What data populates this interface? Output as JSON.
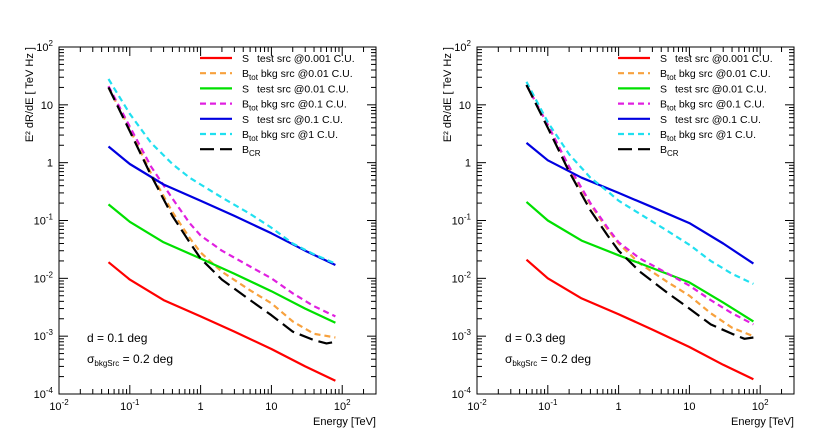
{
  "chart_data": [
    {
      "type": "line",
      "xscale": "log",
      "yscale": "log",
      "xlim": [
        0.01,
        300
      ],
      "ylim": [
        0.0001,
        100
      ],
      "xlabel": "Energy [TeV]",
      "ylabel": "E² dR/dE [ TeV Hz ]",
      "xticks": [
        {
          "value": 0.01,
          "base": "10",
          "exp": "-2"
        },
        {
          "value": 0.1,
          "base": "10",
          "exp": "-1"
        },
        {
          "value": 1,
          "base": "1",
          "exp": ""
        },
        {
          "value": 10,
          "base": "10",
          "exp": ""
        },
        {
          "value": 100,
          "base": "10",
          "exp": "2"
        }
      ],
      "yticks": [
        {
          "value": 0.0001,
          "base": "10",
          "exp": "-4"
        },
        {
          "value": 0.001,
          "base": "10",
          "exp": "-3"
        },
        {
          "value": 0.01,
          "base": "10",
          "exp": "-2"
        },
        {
          "value": 0.1,
          "base": "10",
          "exp": "-1"
        },
        {
          "value": 1,
          "base": "1",
          "exp": ""
        },
        {
          "value": 10,
          "base": "10",
          "exp": ""
        },
        {
          "value": 100,
          "base": "10",
          "exp": "2"
        }
      ],
      "annotations": [
        {
          "text": "d = 0.1 deg"
        },
        {
          "main": "σ",
          "sub": "bkgSrc",
          "rest": " = 0.2 deg"
        }
      ],
      "series": [
        {
          "name": "S test src @0.001 C.U.",
          "legend_main": "S",
          "legend_sub": "",
          "legend_rest": "test src @0.001 C.U.",
          "color": "#ff0000",
          "dash": "solid",
          "x": [
            0.05,
            0.1,
            0.3,
            1,
            3,
            10,
            30,
            80
          ],
          "y": [
            0.019,
            0.0095,
            0.0042,
            0.0022,
            0.0012,
            0.0006,
            0.0003,
            0.00017
          ]
        },
        {
          "name": "Btot bkg src @0.01 C.U.",
          "legend_main": "B",
          "legend_sub": "tot",
          "legend_rest": "bkg src @0.01 C.U.",
          "color": "#f7a13d",
          "dash": "dashed",
          "x": [
            0.05,
            0.1,
            0.2,
            0.4,
            0.7,
            1,
            2,
            5,
            10,
            20,
            40,
            80
          ],
          "y": [
            20,
            3.8,
            0.65,
            0.14,
            0.05,
            0.028,
            0.013,
            0.0062,
            0.0037,
            0.0018,
            0.0011,
            0.00095
          ]
        },
        {
          "name": "S test src @0.01 C.U.",
          "legend_main": "S",
          "legend_sub": "",
          "legend_rest": "test src @0.01 C.U.",
          "color": "#00e000",
          "dash": "solid",
          "x": [
            0.05,
            0.1,
            0.3,
            1,
            3,
            10,
            30,
            80
          ],
          "y": [
            0.19,
            0.095,
            0.042,
            0.022,
            0.012,
            0.006,
            0.003,
            0.0017
          ]
        },
        {
          "name": "Btot bkg src @0.1 C.U.",
          "legend_main": "B",
          "legend_sub": "tot",
          "legend_rest": "bkg src @0.1 C.U.",
          "color": "#e020e0",
          "dash": "dashed",
          "x": [
            0.05,
            0.1,
            0.2,
            0.4,
            0.7,
            1,
            2,
            5,
            10,
            20,
            40,
            80
          ],
          "y": [
            21,
            4.2,
            0.85,
            0.24,
            0.09,
            0.055,
            0.03,
            0.016,
            0.01,
            0.0055,
            0.0033,
            0.0022
          ]
        },
        {
          "name": "S test src @0.1 C.U.",
          "legend_main": "S",
          "legend_sub": "",
          "legend_rest": "test src @0.1 C.U.",
          "color": "#0000e0",
          "dash": "solid",
          "x": [
            0.05,
            0.1,
            0.3,
            1,
            3,
            10,
            30,
            80
          ],
          "y": [
            1.9,
            0.95,
            0.42,
            0.22,
            0.12,
            0.06,
            0.03,
            0.017
          ]
        },
        {
          "name": "Btot bkg src @1 C.U.",
          "legend_main": "B",
          "legend_sub": "tot",
          "legend_rest": "bkg src @1 C.U.",
          "color": "#20e0f0",
          "dash": "dashed",
          "x": [
            0.05,
            0.1,
            0.2,
            0.4,
            0.7,
            1,
            2,
            5,
            10,
            20,
            40,
            80
          ],
          "y": [
            28,
            7,
            2.2,
            0.95,
            0.55,
            0.42,
            0.25,
            0.13,
            0.075,
            0.04,
            0.026,
            0.018
          ]
        },
        {
          "name": "BCR",
          "legend_main": "B",
          "legend_sub": "CR",
          "legend_rest": "",
          "color": "#000000",
          "dash": "longdash",
          "x": [
            0.05,
            0.1,
            0.2,
            0.4,
            0.7,
            1,
            2,
            5,
            10,
            20,
            40,
            60,
            80
          ],
          "y": [
            20,
            3.5,
            0.6,
            0.12,
            0.042,
            0.022,
            0.0095,
            0.0042,
            0.0023,
            0.0012,
            0.00085,
            0.00075,
            0.0008
          ]
        }
      ]
    },
    {
      "type": "line",
      "xscale": "log",
      "yscale": "log",
      "xlim": [
        0.01,
        300
      ],
      "ylim": [
        0.0001,
        100
      ],
      "xlabel": "Energy [TeV]",
      "ylabel": "E² dR/dE [ TeV Hz ]",
      "xticks": [
        {
          "value": 0.01,
          "base": "10",
          "exp": "-2"
        },
        {
          "value": 0.1,
          "base": "10",
          "exp": "-1"
        },
        {
          "value": 1,
          "base": "1",
          "exp": ""
        },
        {
          "value": 10,
          "base": "10",
          "exp": ""
        },
        {
          "value": 100,
          "base": "10",
          "exp": "2"
        }
      ],
      "yticks": [
        {
          "value": 0.0001,
          "base": "10",
          "exp": "-4"
        },
        {
          "value": 0.001,
          "base": "10",
          "exp": "-3"
        },
        {
          "value": 0.01,
          "base": "10",
          "exp": "-2"
        },
        {
          "value": 0.1,
          "base": "10",
          "exp": "-1"
        },
        {
          "value": 1,
          "base": "1",
          "exp": ""
        },
        {
          "value": 10,
          "base": "10",
          "exp": ""
        },
        {
          "value": 100,
          "base": "10",
          "exp": "2"
        }
      ],
      "annotations": [
        {
          "text": "d = 0.3 deg"
        },
        {
          "main": "σ",
          "sub": "bkgSrc",
          "rest": " = 0.2 deg"
        }
      ],
      "series": [
        {
          "name": "S test src @0.001 C.U.",
          "legend_main": "S",
          "legend_sub": "",
          "legend_rest": "test src @0.001 C.U.",
          "color": "#ff0000",
          "dash": "solid",
          "x": [
            0.05,
            0.1,
            0.3,
            1,
            3,
            10,
            30,
            80
          ],
          "y": [
            0.021,
            0.01,
            0.0045,
            0.0024,
            0.0013,
            0.00065,
            0.00032,
            0.00018
          ]
        },
        {
          "name": "Btot bkg src @0.01 C.U.",
          "legend_main": "B",
          "legend_sub": "tot",
          "legend_rest": "bkg src @0.01 C.U.",
          "color": "#f7a13d",
          "dash": "dashed",
          "x": [
            0.05,
            0.1,
            0.2,
            0.4,
            0.7,
            1,
            2,
            5,
            10,
            20,
            40,
            80
          ],
          "y": [
            22,
            4.5,
            0.8,
            0.19,
            0.07,
            0.04,
            0.018,
            0.0085,
            0.005,
            0.0025,
            0.0014,
            0.001
          ]
        },
        {
          "name": "S test src @0.01 C.U.",
          "legend_main": "S",
          "legend_sub": "",
          "legend_rest": "test src @0.01 C.U.",
          "color": "#00e000",
          "dash": "solid",
          "x": [
            0.05,
            0.1,
            0.3,
            1,
            3,
            10,
            30,
            80
          ],
          "y": [
            0.21,
            0.1,
            0.045,
            0.025,
            0.015,
            0.0085,
            0.0038,
            0.0018
          ]
        },
        {
          "name": "Btot bkg src @0.1 C.U.",
          "legend_main": "B",
          "legend_sub": "tot",
          "legend_rest": "bkg src @0.1 C.U.",
          "color": "#e020e0",
          "dash": "dashed",
          "x": [
            0.05,
            0.1,
            0.2,
            0.4,
            0.7,
            1,
            2,
            5,
            10,
            20,
            40,
            80
          ],
          "y": [
            22,
            4.5,
            0.85,
            0.2,
            0.075,
            0.042,
            0.022,
            0.012,
            0.0075,
            0.0042,
            0.0025,
            0.0016
          ]
        },
        {
          "name": "S test src @0.1 C.U.",
          "legend_main": "S",
          "legend_sub": "",
          "legend_rest": "test src @0.1 C.U.",
          "color": "#0000e0",
          "dash": "solid",
          "x": [
            0.05,
            0.1,
            0.3,
            1,
            3,
            10,
            30,
            80
          ],
          "y": [
            2.2,
            1.1,
            0.55,
            0.3,
            0.17,
            0.09,
            0.04,
            0.018
          ]
        },
        {
          "name": "Btot bkg src @1 C.U.",
          "legend_main": "B",
          "legend_sub": "tot",
          "legend_rest": "bkg src @1 C.U.",
          "color": "#20e0f0",
          "dash": "dashed",
          "x": [
            0.05,
            0.1,
            0.2,
            0.4,
            0.7,
            1,
            2,
            5,
            10,
            20,
            40,
            80
          ],
          "y": [
            25,
            5,
            1.4,
            0.55,
            0.32,
            0.22,
            0.13,
            0.065,
            0.038,
            0.02,
            0.012,
            0.008
          ]
        },
        {
          "name": "BCR",
          "legend_main": "B",
          "legend_sub": "CR",
          "legend_rest": "",
          "color": "#000000",
          "dash": "longdash",
          "x": [
            0.05,
            0.1,
            0.2,
            0.4,
            0.7,
            1,
            2,
            5,
            10,
            20,
            40,
            60,
            80
          ],
          "y": [
            22,
            4,
            0.7,
            0.15,
            0.055,
            0.03,
            0.013,
            0.0055,
            0.003,
            0.0016,
            0.0011,
            0.0009,
            0.00095
          ]
        }
      ]
    }
  ]
}
